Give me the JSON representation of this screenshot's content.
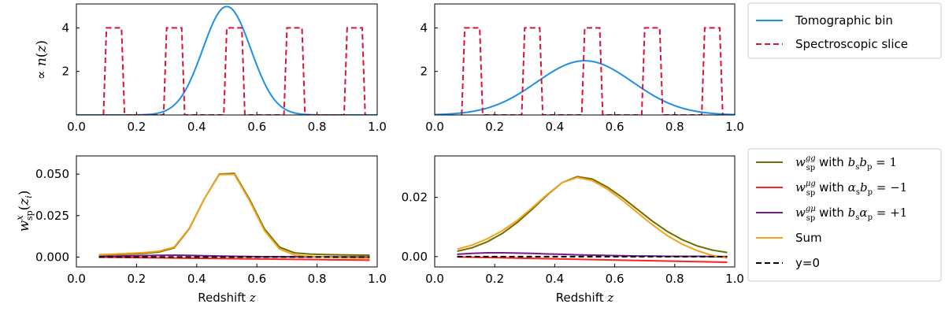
{
  "chart_data": [
    {
      "panel": "top-left",
      "type": "line",
      "xlim": [
        0.0,
        1.0
      ],
      "ylim": [
        0.0,
        5.1
      ],
      "xticks": [
        "0.0",
        "0.2",
        "0.4",
        "0.6",
        "0.8",
        "1.0"
      ],
      "xtick_values": [
        0.0,
        0.2,
        0.4,
        0.6,
        0.8,
        1.0
      ],
      "yticks": [
        "2",
        "4"
      ],
      "ytick_values": [
        2,
        4
      ],
      "ylabel": "∝ n(z)",
      "xlabel": "",
      "series": [
        {
          "name": "Tomographic bin",
          "style": "solid",
          "color": "#1f8fe5",
          "gaussian": {
            "mean": 0.5,
            "sigma": 0.08,
            "amp": 4.98
          }
        },
        {
          "name": "Spectroscopic slice",
          "style": "dashed",
          "color": "#d6143c",
          "x": [
            0.09,
            0.1,
            0.15,
            0.16,
            0.29,
            0.3,
            0.35,
            0.36,
            0.49,
            0.5,
            0.55,
            0.56,
            0.69,
            0.7,
            0.75,
            0.76,
            0.89,
            0.9,
            0.95,
            0.96
          ],
          "y": [
            0,
            4,
            4,
            0,
            0,
            4,
            4,
            0,
            0,
            4,
            4,
            0,
            0,
            4,
            4,
            0,
            0,
            4,
            4,
            0
          ]
        }
      ]
    },
    {
      "panel": "top-right",
      "type": "line",
      "xlim": [
        0.0,
        1.0
      ],
      "ylim": [
        0.0,
        5.1
      ],
      "xticks": [
        "0.0",
        "0.2",
        "0.4",
        "0.6",
        "0.8",
        "1.0"
      ],
      "xtick_values": [
        0.0,
        0.2,
        0.4,
        0.6,
        0.8,
        1.0
      ],
      "yticks": [
        "2",
        "4"
      ],
      "ytick_values": [
        2,
        4
      ],
      "xlabel": "",
      "series": [
        {
          "name": "Tomographic bin",
          "style": "solid",
          "color": "#1f8fe5",
          "gaussian": {
            "mean": 0.5,
            "sigma": 0.16,
            "amp": 2.49
          }
        },
        {
          "name": "Spectroscopic slice",
          "style": "dashed",
          "color": "#d6143c",
          "x": [
            0.09,
            0.1,
            0.15,
            0.16,
            0.29,
            0.3,
            0.35,
            0.36,
            0.49,
            0.5,
            0.55,
            0.56,
            0.69,
            0.7,
            0.75,
            0.76,
            0.89,
            0.9,
            0.95,
            0.96
          ],
          "y": [
            0,
            4,
            4,
            0,
            0,
            4,
            4,
            0,
            0,
            4,
            4,
            0,
            0,
            4,
            4,
            0,
            0,
            4,
            4,
            0
          ]
        }
      ]
    },
    {
      "panel": "bottom-left",
      "type": "line",
      "xlim": [
        0.0,
        1.0
      ],
      "ylim": [
        -0.006,
        0.061
      ],
      "xticks": [
        "0.0",
        "0.2",
        "0.4",
        "0.6",
        "0.8",
        "1.0"
      ],
      "xtick_values": [
        0.0,
        0.2,
        0.4,
        0.6,
        0.8,
        1.0
      ],
      "yticks": [
        "0.000",
        "0.025",
        "0.050"
      ],
      "ytick_values": [
        0.0,
        0.025,
        0.05
      ],
      "xlabel": "Redshift z",
      "ylabel": "w^x_sp(z_i)",
      "x": [
        0.075,
        0.125,
        0.175,
        0.225,
        0.275,
        0.325,
        0.375,
        0.425,
        0.475,
        0.525,
        0.575,
        0.625,
        0.675,
        0.725,
        0.775,
        0.825,
        0.875,
        0.925,
        0.975
      ],
      "series": [
        {
          "name": "gg",
          "color": "#6b7000",
          "style": "solid",
          "y": [
            0.0012,
            0.0015,
            0.0018,
            0.0022,
            0.003,
            0.0055,
            0.017,
            0.035,
            0.05,
            0.0505,
            0.035,
            0.017,
            0.006,
            0.0025,
            0.0018,
            0.0015,
            0.0013,
            0.0012,
            0.0011
          ]
        },
        {
          "name": "mug",
          "color": "#ff2222",
          "style": "solid",
          "y": [
            -0.0001,
            -0.0002,
            -0.0003,
            -0.0004,
            -0.0005,
            -0.0006,
            -0.0007,
            -0.0008,
            -0.0009,
            -0.001,
            -0.0011,
            -0.0012,
            -0.0013,
            -0.0014,
            -0.0015,
            -0.0016,
            -0.0017,
            -0.0018,
            -0.0019
          ]
        },
        {
          "name": "gmu",
          "color": "#7a1a8a",
          "style": "solid",
          "y": [
            0.0003,
            0.0005,
            0.0007,
            0.0009,
            0.001,
            0.0011,
            0.001,
            0.0008,
            0.0006,
            0.0004,
            0.0003,
            0.0002,
            0.0002,
            0.0001,
            0.0001,
            0.0001,
            0.0,
            0.0,
            0.0
          ]
        },
        {
          "name": "sum",
          "color": "#f5a11a",
          "style": "solid",
          "y": [
            0.0014,
            0.0018,
            0.0022,
            0.0027,
            0.0035,
            0.006,
            0.0173,
            0.035,
            0.0497,
            0.0499,
            0.0342,
            0.016,
            0.0049,
            0.0012,
            0.0004,
            0.0,
            -0.0004,
            -0.0006,
            -0.0008
          ]
        },
        {
          "name": "y0",
          "color": "#000000",
          "style": "dashed",
          "y": [
            0,
            0,
            0,
            0,
            0,
            0,
            0,
            0,
            0,
            0,
            0,
            0,
            0,
            0,
            0,
            0,
            0,
            0,
            0
          ]
        }
      ]
    },
    {
      "panel": "bottom-right",
      "type": "line",
      "xlim": [
        0.0,
        1.0
      ],
      "ylim": [
        -0.0035,
        0.034
      ],
      "xticks": [
        "0.0",
        "0.2",
        "0.4",
        "0.6",
        "0.8",
        "1.0"
      ],
      "xtick_values": [
        0.0,
        0.2,
        0.4,
        0.6,
        0.8,
        1.0
      ],
      "yticks": [
        "0.00",
        "0.02"
      ],
      "ytick_values": [
        0.0,
        0.02
      ],
      "xlabel": "Redshift z",
      "x": [
        0.075,
        0.125,
        0.175,
        0.225,
        0.275,
        0.325,
        0.375,
        0.425,
        0.475,
        0.525,
        0.575,
        0.625,
        0.675,
        0.725,
        0.775,
        0.825,
        0.875,
        0.925,
        0.975
      ],
      "series": [
        {
          "name": "gg",
          "color": "#6b7000",
          "style": "solid",
          "y": [
            0.0018,
            0.003,
            0.005,
            0.0078,
            0.0115,
            0.016,
            0.0208,
            0.025,
            0.027,
            0.0262,
            0.0235,
            0.02,
            0.016,
            0.012,
            0.0085,
            0.0057,
            0.0036,
            0.0022,
            0.0014
          ]
        },
        {
          "name": "mug",
          "color": "#ff2222",
          "style": "solid",
          "y": [
            -0.0001,
            -0.0002,
            -0.0003,
            -0.0004,
            -0.0005,
            -0.0006,
            -0.0007,
            -0.0008,
            -0.0009,
            -0.001,
            -0.0011,
            -0.0012,
            -0.0013,
            -0.0014,
            -0.0015,
            -0.0016,
            -0.0017,
            -0.0018,
            -0.0019
          ]
        },
        {
          "name": "gmu",
          "color": "#7a1a8a",
          "style": "solid",
          "y": [
            0.0008,
            0.0011,
            0.0013,
            0.0013,
            0.0012,
            0.0011,
            0.0009,
            0.0008,
            0.0006,
            0.0005,
            0.0004,
            0.0003,
            0.0002,
            0.0002,
            0.0001,
            0.0001,
            0.0001,
            0.0,
            0.0
          ]
        },
        {
          "name": "sum",
          "color": "#f5a11a",
          "style": "solid",
          "y": [
            0.0025,
            0.0039,
            0.006,
            0.0087,
            0.0122,
            0.0165,
            0.021,
            0.025,
            0.0267,
            0.0257,
            0.0228,
            0.0191,
            0.0149,
            0.0108,
            0.0071,
            0.0042,
            0.002,
            0.0004,
            -0.0005
          ]
        },
        {
          "name": "y0",
          "color": "#000000",
          "style": "dashed",
          "y": [
            0,
            0,
            0,
            0,
            0,
            0,
            0,
            0,
            0,
            0,
            0,
            0,
            0,
            0,
            0,
            0,
            0,
            0,
            0
          ]
        }
      ]
    }
  ],
  "legends": {
    "top": [
      {
        "label": "Tomographic bin",
        "color": "#1f8fe5",
        "style": "solid"
      },
      {
        "label": "Spectroscopic slice",
        "color": "#d6143c",
        "style": "dashed"
      }
    ],
    "bottom": [
      {
        "label": "w^gg_sp with b_s b_p = 1",
        "sup": "gg",
        "cond_pre": "b",
        "cond_s": "s",
        "cond_mid": "b",
        "cond_p": "p",
        "cond_rhs": " = 1",
        "color": "#6b7000",
        "style": "solid"
      },
      {
        "label": "w^μg_sp with α_s b_p = −1",
        "sup": "μg",
        "cond_pre": "α",
        "cond_s": "s",
        "cond_mid": "b",
        "cond_p": "p",
        "cond_rhs": " = −1",
        "color": "#ff2222",
        "style": "solid"
      },
      {
        "label": "w^gμ_sp with b_s α_p = +1",
        "sup": "gμ",
        "cond_pre": "b",
        "cond_s": "s",
        "cond_mid": "α",
        "cond_p": "p",
        "cond_rhs": " = +1",
        "color": "#7a1a8a",
        "style": "solid"
      },
      {
        "label": "Sum",
        "color": "#f5a11a",
        "style": "solid"
      },
      {
        "label": "y=0",
        "color": "#000000",
        "style": "dashed"
      }
    ],
    "w_symbol": "w",
    "sp_sub": "sp",
    "with_word": " with "
  }
}
